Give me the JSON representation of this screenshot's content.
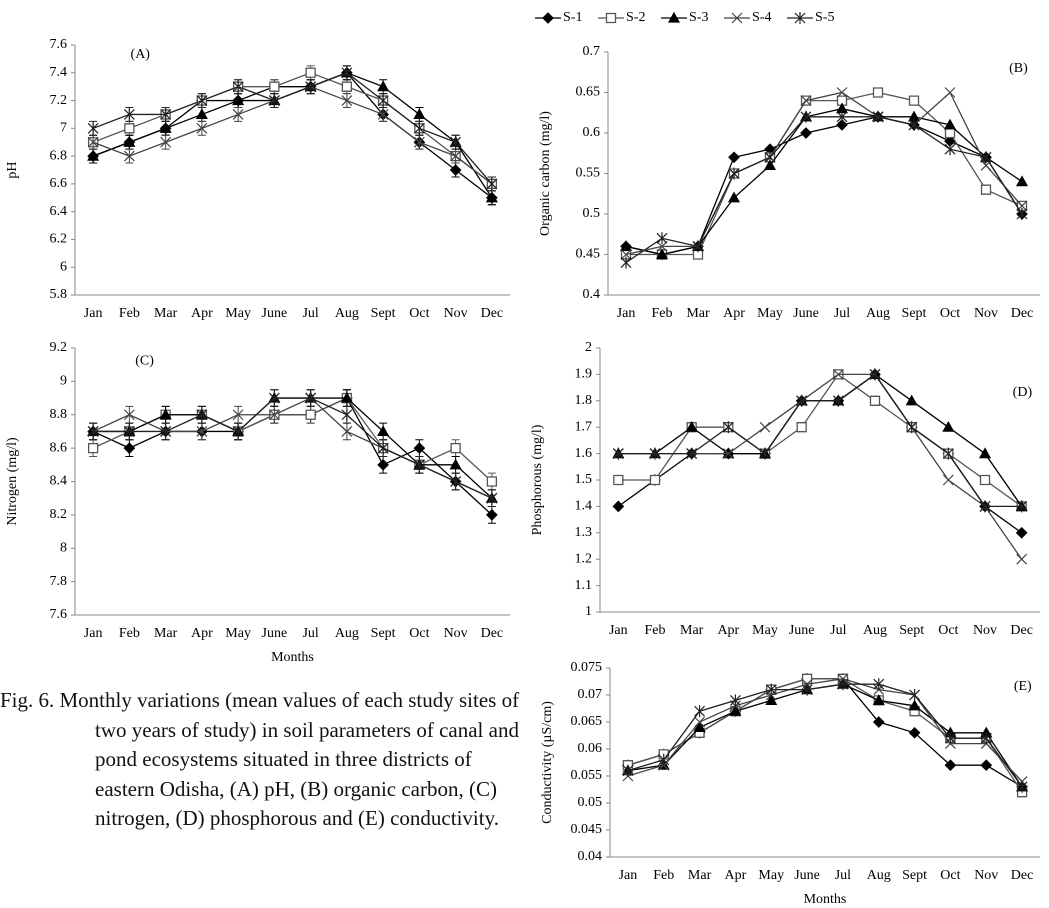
{
  "chart_data": [
    {
      "type": "line",
      "panel_label": "(A)",
      "y_label": "pH",
      "categories": [
        "Jan",
        "Feb",
        "Mar",
        "Apr",
        "May",
        "June",
        "Jul",
        "Aug",
        "Sept",
        "Oct",
        "Nov",
        "Dec"
      ],
      "ylim": [
        5.8,
        7.6
      ],
      "yticks": [
        5.8,
        6,
        6.2,
        6.4,
        6.6,
        6.8,
        7,
        7.2,
        7.4,
        7.6
      ],
      "series": [
        {
          "name": "S-1",
          "marker": "diamond",
          "color": "#000000",
          "error": 0.05,
          "values": [
            6.8,
            6.9,
            7.0,
            7.2,
            7.2,
            7.3,
            7.3,
            7.4,
            7.1,
            6.9,
            6.7,
            6.5
          ]
        },
        {
          "name": "S-2",
          "marker": "square",
          "color": "#555555",
          "error": 0.05,
          "values": [
            6.9,
            7.0,
            7.1,
            7.2,
            7.3,
            7.3,
            7.4,
            7.3,
            7.2,
            7.0,
            6.8,
            6.6
          ]
        },
        {
          "name": "S-3",
          "marker": "triangle",
          "color": "#000000",
          "error": 0.05,
          "values": [
            6.8,
            6.9,
            7.0,
            7.1,
            7.2,
            7.2,
            7.3,
            7.4,
            7.3,
            7.1,
            6.9,
            6.5
          ]
        },
        {
          "name": "S-4",
          "marker": "x",
          "color": "#444444",
          "error": 0.05,
          "values": [
            6.9,
            6.8,
            6.9,
            7.0,
            7.1,
            7.2,
            7.3,
            7.2,
            7.1,
            6.9,
            6.8,
            6.6
          ]
        },
        {
          "name": "S-5",
          "marker": "asterisk",
          "color": "#222222",
          "error": 0.05,
          "values": [
            7.0,
            7.1,
            7.1,
            7.2,
            7.3,
            7.2,
            7.3,
            7.4,
            7.2,
            7.0,
            6.9,
            6.6
          ]
        }
      ]
    },
    {
      "type": "line",
      "panel_label": "(B)",
      "y_label": "Organic carbon  (mg/l)",
      "categories": [
        "Jan",
        "Feb",
        "Mar",
        "Apr",
        "May",
        "June",
        "Jul",
        "Aug",
        "Sept",
        "Oct",
        "Nov",
        "Dec"
      ],
      "ylim": [
        0.4,
        0.7
      ],
      "yticks": [
        0.4,
        0.45,
        0.5,
        0.55,
        0.6,
        0.65,
        0.7
      ],
      "series": [
        {
          "name": "S-1",
          "marker": "diamond",
          "color": "#000000",
          "values": [
            0.46,
            0.45,
            0.46,
            0.57,
            0.58,
            0.6,
            0.61,
            0.62,
            0.61,
            0.59,
            0.57,
            0.5
          ]
        },
        {
          "name": "S-2",
          "marker": "square",
          "color": "#555555",
          "values": [
            0.45,
            0.45,
            0.45,
            0.55,
            0.57,
            0.64,
            0.64,
            0.65,
            0.64,
            0.6,
            0.53,
            0.51
          ]
        },
        {
          "name": "S-3",
          "marker": "triangle",
          "color": "#000000",
          "values": [
            0.46,
            0.45,
            0.46,
            0.52,
            0.56,
            0.62,
            0.63,
            0.62,
            0.62,
            0.61,
            0.57,
            0.54
          ]
        },
        {
          "name": "S-4",
          "marker": "x",
          "color": "#444444",
          "values": [
            0.45,
            0.46,
            0.46,
            0.55,
            0.57,
            0.64,
            0.65,
            0.62,
            0.61,
            0.65,
            0.56,
            0.51
          ]
        },
        {
          "name": "S-5",
          "marker": "asterisk",
          "color": "#222222",
          "values": [
            0.44,
            0.47,
            0.46,
            0.55,
            0.57,
            0.62,
            0.62,
            0.62,
            0.61,
            0.58,
            0.57,
            0.5
          ]
        }
      ]
    },
    {
      "type": "line",
      "panel_label": "(C)",
      "y_label": "Nitrogen (mg/l)",
      "x_label": "Months",
      "categories": [
        "Jan",
        "Feb",
        "Mar",
        "Apr",
        "May",
        "June",
        "Jul",
        "Aug",
        "Sept",
        "Oct",
        "Nov",
        "Dec"
      ],
      "ylim": [
        7.6,
        9.2
      ],
      "yticks": [
        7.6,
        7.8,
        8,
        8.2,
        8.4,
        8.6,
        8.8,
        9,
        9.2
      ],
      "series": [
        {
          "name": "S-1",
          "marker": "diamond",
          "color": "#000000",
          "error": 0.05,
          "values": [
            8.7,
            8.6,
            8.7,
            8.7,
            8.7,
            8.8,
            8.8,
            8.9,
            8.5,
            8.6,
            8.4,
            8.2
          ]
        },
        {
          "name": "S-2",
          "marker": "square",
          "color": "#555555",
          "error": 0.05,
          "values": [
            8.6,
            8.7,
            8.8,
            8.8,
            8.7,
            8.8,
            8.8,
            8.9,
            8.6,
            8.5,
            8.6,
            8.4
          ]
        },
        {
          "name": "S-3",
          "marker": "triangle",
          "color": "#000000",
          "error": 0.05,
          "values": [
            8.7,
            8.7,
            8.8,
            8.8,
            8.7,
            8.9,
            8.9,
            8.9,
            8.7,
            8.5,
            8.5,
            8.3
          ]
        },
        {
          "name": "S-4",
          "marker": "x",
          "color": "#444444",
          "error": 0.05,
          "values": [
            8.7,
            8.8,
            8.7,
            8.7,
            8.8,
            8.8,
            8.9,
            8.7,
            8.6,
            8.5,
            8.4,
            8.3
          ]
        },
        {
          "name": "S-5",
          "marker": "asterisk",
          "color": "#222222",
          "error": 0.05,
          "values": [
            8.7,
            8.7,
            8.7,
            8.8,
            8.7,
            8.9,
            8.9,
            8.8,
            8.6,
            8.5,
            8.4,
            8.3
          ]
        }
      ]
    },
    {
      "type": "line",
      "panel_label": "(D)",
      "y_label": "Phosphorous (mg/l)",
      "categories": [
        "Jan",
        "Feb",
        "Mar",
        "Apr",
        "May",
        "June",
        "Jul",
        "Aug",
        "Sept",
        "Oct",
        "Nov",
        "Dec"
      ],
      "ylim": [
        1,
        2
      ],
      "yticks": [
        1,
        1.1,
        1.2,
        1.3,
        1.4,
        1.5,
        1.6,
        1.7,
        1.8,
        1.9,
        2
      ],
      "series": [
        {
          "name": "S-1",
          "marker": "diamond",
          "color": "#000000",
          "values": [
            1.4,
            1.5,
            1.6,
            1.6,
            1.6,
            1.8,
            1.8,
            1.9,
            1.7,
            1.6,
            1.4,
            1.3
          ]
        },
        {
          "name": "S-2",
          "marker": "square",
          "color": "#555555",
          "values": [
            1.5,
            1.5,
            1.7,
            1.7,
            1.6,
            1.7,
            1.9,
            1.8,
            1.7,
            1.6,
            1.5,
            1.4
          ]
        },
        {
          "name": "S-3",
          "marker": "triangle",
          "color": "#000000",
          "values": [
            1.6,
            1.6,
            1.7,
            1.6,
            1.6,
            1.8,
            1.8,
            1.9,
            1.8,
            1.7,
            1.6,
            1.4
          ]
        },
        {
          "name": "S-4",
          "marker": "x",
          "color": "#444444",
          "values": [
            1.6,
            1.6,
            1.6,
            1.6,
            1.7,
            1.8,
            1.9,
            1.9,
            1.7,
            1.5,
            1.4,
            1.2
          ]
        },
        {
          "name": "S-5",
          "marker": "asterisk",
          "color": "#222222",
          "values": [
            1.6,
            1.6,
            1.6,
            1.7,
            1.6,
            1.8,
            1.8,
            1.9,
            1.7,
            1.6,
            1.4,
            1.4
          ]
        }
      ]
    },
    {
      "type": "line",
      "panel_label": "(E)",
      "y_label": "Conductivity (µS/cm)",
      "x_label": "Months",
      "categories": [
        "Jan",
        "Feb",
        "Mar",
        "Apr",
        "May",
        "June",
        "Jul",
        "Aug",
        "Sept",
        "Oct",
        "Nov",
        "Dec"
      ],
      "ylim": [
        0.04,
        0.075
      ],
      "yticks": [
        0.04,
        0.045,
        0.05,
        0.055,
        0.06,
        0.065,
        0.07,
        0.075
      ],
      "series": [
        {
          "name": "S-1",
          "marker": "diamond",
          "color": "#000000",
          "values": [
            0.057,
            0.059,
            0.063,
            0.067,
            0.071,
            0.073,
            0.073,
            0.065,
            0.063,
            0.057,
            0.057,
            0.053
          ]
        },
        {
          "name": "S-2",
          "marker": "square",
          "color": "#555555",
          "values": [
            0.057,
            0.059,
            0.063,
            0.067,
            0.071,
            0.073,
            0.073,
            0.069,
            0.067,
            0.062,
            0.062,
            0.052
          ]
        },
        {
          "name": "S-3",
          "marker": "triangle",
          "color": "#000000",
          "values": [
            0.056,
            0.057,
            0.064,
            0.067,
            0.069,
            0.071,
            0.072,
            0.069,
            0.068,
            0.063,
            0.063,
            0.053
          ]
        },
        {
          "name": "S-4",
          "marker": "x",
          "color": "#444444",
          "values": [
            0.055,
            0.057,
            0.065,
            0.068,
            0.07,
            0.072,
            0.073,
            0.071,
            0.07,
            0.061,
            0.061,
            0.054
          ]
        },
        {
          "name": "S-5",
          "marker": "asterisk",
          "color": "#222222",
          "values": [
            0.056,
            0.058,
            0.067,
            0.069,
            0.071,
            0.071,
            0.072,
            0.072,
            0.07,
            0.062,
            0.062,
            0.053
          ]
        }
      ]
    }
  ],
  "caption": "Fig. 6. Monthly variations (mean values of each study sites of two years of study) in soil parameters of canal and pond ecosystems situated in three districts of eastern Odisha, (A) pH, (B) organic carbon, (C) nitrogen, (D) phosphorous and (E) conductivity."
}
